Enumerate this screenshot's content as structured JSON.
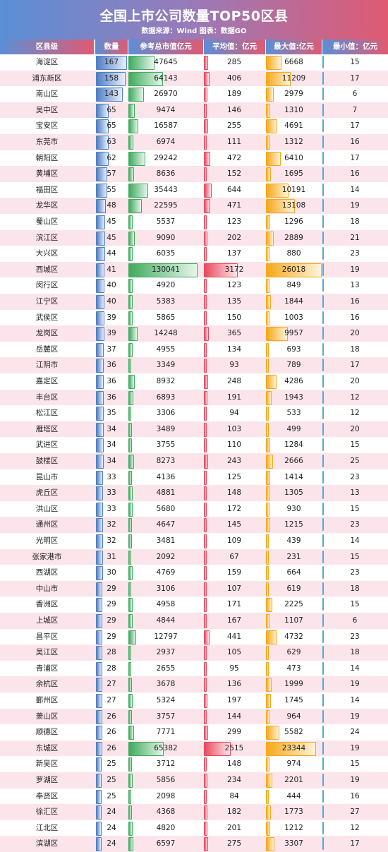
{
  "header": {
    "title": "全国上市公司数量TOP50区县",
    "subtitle": "数据来源：Wind 图表：数据GO"
  },
  "columns": {
    "district": "区县级",
    "count": "数量",
    "total": "参考总市值亿元",
    "avg": "平均值：亿元",
    "max": "最大值:亿元",
    "min": "最小值：亿元"
  },
  "colors": {
    "count": "#4f7fc4",
    "total": "#3faa5e",
    "avg": "#e84a5f",
    "max": "#f6a81a",
    "min": "#5aa6d8",
    "row_alt": "#fbe5ea"
  },
  "chart_data": {
    "type": "table",
    "title": "全国上市公司数量TOP50区县",
    "columns": [
      "区县级",
      "数量",
      "参考总市值亿元",
      "平均值：亿元",
      "最大值:亿元",
      "最小值：亿元"
    ],
    "rows": [
      {
        "district": "海淀区",
        "count": "167",
        "total": "47645",
        "avg": "285",
        "max": "6668",
        "min": "15"
      },
      {
        "district": "浦东新区",
        "count": "158",
        "total": "64143",
        "avg": "406",
        "max": "11209",
        "min": "17"
      },
      {
        "district": "南山区",
        "count": "143",
        "total": "26970",
        "avg": "189",
        "max": "2979",
        "min": "6"
      },
      {
        "district": "吴中区",
        "count": "65",
        "total": "9474",
        "avg": "146",
        "max": "1310",
        "min": "7"
      },
      {
        "district": "宝安区",
        "count": "65",
        "total": "16587",
        "avg": "255",
        "max": "4691",
        "min": "17"
      },
      {
        "district": "东莞市",
        "count": "63",
        "total": "6974",
        "avg": "111",
        "max": "1312",
        "min": "16"
      },
      {
        "district": "朝阳区",
        "count": "62",
        "total": "29242",
        "avg": "472",
        "max": "6410",
        "min": "17"
      },
      {
        "district": "黄埔区",
        "count": "57",
        "total": "8636",
        "avg": "152",
        "max": "1695",
        "min": "16"
      },
      {
        "district": "福田区",
        "count": "55",
        "total": "35443",
        "avg": "644",
        "max": "10191",
        "min": "14"
      },
      {
        "district": "龙华区",
        "count": "48",
        "total": "22595",
        "avg": "471",
        "max": "13108",
        "min": "19"
      },
      {
        "district": "蜀山区",
        "count": "45",
        "total": "5537",
        "avg": "123",
        "max": "1296",
        "min": "18"
      },
      {
        "district": "滨江区",
        "count": "45",
        "total": "9090",
        "avg": "202",
        "max": "2889",
        "min": "21"
      },
      {
        "district": "大兴区",
        "count": "44",
        "total": "6035",
        "avg": "137",
        "max": "880",
        "min": "23"
      },
      {
        "district": "西城区",
        "count": "41",
        "total": "130041",
        "avg": "3172",
        "max": "26018",
        "min": "19"
      },
      {
        "district": "闵行区",
        "count": "40",
        "total": "4920",
        "avg": "123",
        "max": "849",
        "min": "13"
      },
      {
        "district": "江宁区",
        "count": "40",
        "total": "5383",
        "avg": "135",
        "max": "1844",
        "min": "16"
      },
      {
        "district": "武侯区",
        "count": "39",
        "total": "5865",
        "avg": "150",
        "max": "1003",
        "min": "16"
      },
      {
        "district": "龙岗区",
        "count": "39",
        "total": "14248",
        "avg": "365",
        "max": "9957",
        "min": "20"
      },
      {
        "district": "岳麓区",
        "count": "37",
        "total": "4955",
        "avg": "134",
        "max": "693",
        "min": "18"
      },
      {
        "district": "江阴市",
        "count": "36",
        "total": "3349",
        "avg": "93",
        "max": "789",
        "min": "17"
      },
      {
        "district": "嘉定区",
        "count": "36",
        "total": "8932",
        "avg": "248",
        "max": "4286",
        "min": "20"
      },
      {
        "district": "丰台区",
        "count": "36",
        "total": "6893",
        "avg": "191",
        "max": "1943",
        "min": "12"
      },
      {
        "district": "松江区",
        "count": "35",
        "total": "3306",
        "avg": "94",
        "max": "533",
        "min": "12"
      },
      {
        "district": "雁塔区",
        "count": "34",
        "total": "3489",
        "avg": "103",
        "max": "499",
        "min": "20"
      },
      {
        "district": "武进区",
        "count": "34",
        "total": "3755",
        "avg": "110",
        "max": "1284",
        "min": "15"
      },
      {
        "district": "鼓楼区",
        "count": "34",
        "total": "8273",
        "avg": "243",
        "max": "2666",
        "min": "25"
      },
      {
        "district": "昆山市",
        "count": "33",
        "total": "4136",
        "avg": "125",
        "max": "1414",
        "min": "23"
      },
      {
        "district": "虎丘区",
        "count": "33",
        "total": "4881",
        "avg": "148",
        "max": "1305",
        "min": "13"
      },
      {
        "district": "洪山区",
        "count": "33",
        "total": "5680",
        "avg": "172",
        "max": "930",
        "min": "15"
      },
      {
        "district": "通州区",
        "count": "32",
        "total": "4647",
        "avg": "145",
        "max": "1215",
        "min": "23"
      },
      {
        "district": "光明区",
        "count": "32",
        "total": "3481",
        "avg": "109",
        "max": "439",
        "min": "14"
      },
      {
        "district": "张家港市",
        "count": "31",
        "total": "2092",
        "avg": "67",
        "max": "231",
        "min": "15"
      },
      {
        "district": "西湖区",
        "count": "30",
        "total": "4769",
        "avg": "159",
        "max": "664",
        "min": "23"
      },
      {
        "district": "中山市",
        "count": "29",
        "total": "3106",
        "avg": "107",
        "max": "619",
        "min": "18"
      },
      {
        "district": "香洲区",
        "count": "29",
        "total": "4958",
        "avg": "171",
        "max": "2225",
        "min": "15"
      },
      {
        "district": "上城区",
        "count": "29",
        "total": "4844",
        "avg": "167",
        "max": "1107",
        "min": "6"
      },
      {
        "district": "昌平区",
        "count": "29",
        "total": "12797",
        "avg": "441",
        "max": "4732",
        "min": "23"
      },
      {
        "district": "吴江区",
        "count": "28",
        "total": "2937",
        "avg": "105",
        "max": "629",
        "min": "18"
      },
      {
        "district": "青浦区",
        "count": "28",
        "total": "2655",
        "avg": "95",
        "max": "473",
        "min": "14"
      },
      {
        "district": "余杭区",
        "count": "27",
        "total": "3678",
        "avg": "136",
        "max": "1999",
        "min": "19"
      },
      {
        "district": "鄞州区",
        "count": "27",
        "total": "5324",
        "avg": "197",
        "max": "1745",
        "min": "14"
      },
      {
        "district": "萧山区",
        "count": "26",
        "total": "3757",
        "avg": "144",
        "max": "964",
        "min": "19"
      },
      {
        "district": "顺德区",
        "count": "26",
        "total": "7771",
        "avg": "299",
        "max": "5582",
        "min": "24"
      },
      {
        "district": "东城区",
        "count": "26",
        "total": "65382",
        "avg": "2515",
        "max": "23344",
        "min": "19"
      },
      {
        "district": "新吴区",
        "count": "25",
        "total": "3712",
        "avg": "148",
        "max": "974",
        "min": "15"
      },
      {
        "district": "罗湖区",
        "count": "25",
        "total": "5856",
        "avg": "234",
        "max": "2201",
        "min": "19"
      },
      {
        "district": "奉贤区",
        "count": "25",
        "total": "2098",
        "avg": "84",
        "max": "444",
        "min": "16"
      },
      {
        "district": "徐汇区",
        "count": "24",
        "total": "4368",
        "avg": "182",
        "max": "1773",
        "min": "27"
      },
      {
        "district": "江北区",
        "count": "24",
        "total": "4820",
        "avg": "201",
        "max": "1212",
        "min": "12"
      },
      {
        "district": "滨湖区",
        "count": "24",
        "total": "6597",
        "avg": "275",
        "max": "3307",
        "min": "17"
      }
    ]
  }
}
